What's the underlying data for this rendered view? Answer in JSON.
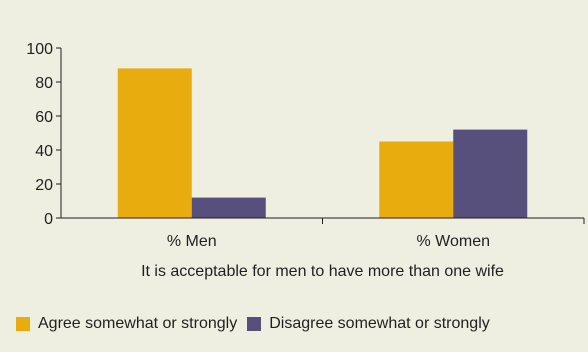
{
  "chart_data": {
    "type": "bar",
    "categories": [
      "% Men",
      "% Women"
    ],
    "series": [
      {
        "name": "Agree somewhat or strongly",
        "values": [
          88,
          45
        ],
        "color": "#e8ac0f"
      },
      {
        "name": "Disagree somewhat or strongly",
        "values": [
          12,
          52
        ],
        "color": "#57507c"
      }
    ],
    "title": "",
    "xlabel": "It is acceptable for men to have more than one wife",
    "ylabel": "",
    "ylim": [
      0,
      100
    ],
    "yticks": [
      0,
      20,
      40,
      60,
      80,
      100
    ],
    "grid": false,
    "legend_position": "bottom-left"
  }
}
